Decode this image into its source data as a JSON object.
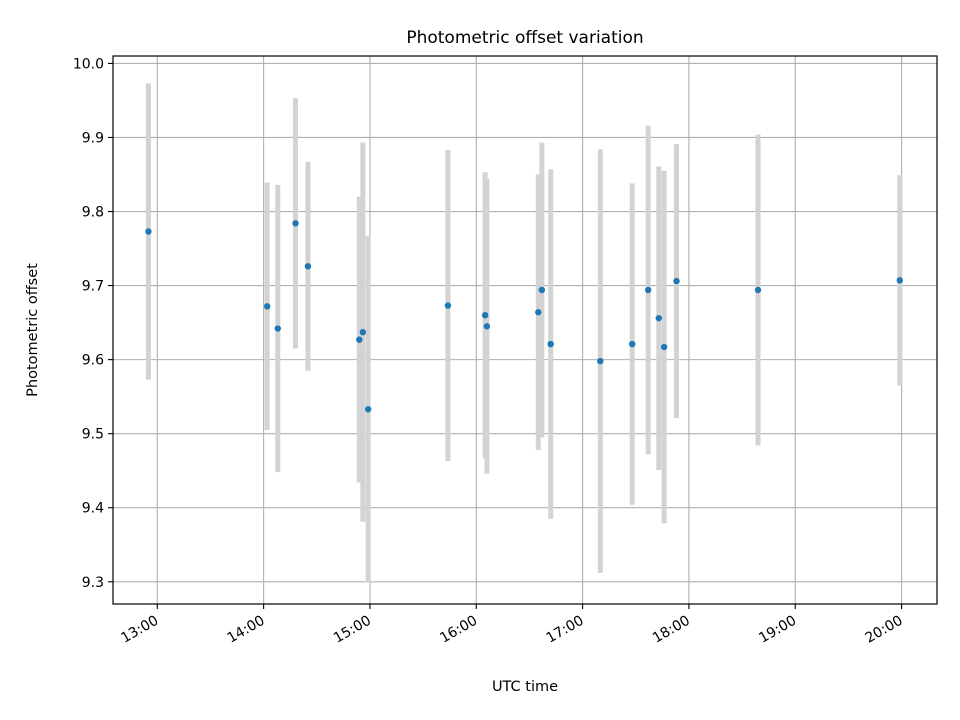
{
  "chart_data": {
    "type": "scatter",
    "title": "Photometric offset variation",
    "xlabel": "UTC time",
    "ylabel": "Photometric offset",
    "xlim": [
      "12:35",
      "20:20"
    ],
    "ylim": [
      9.27,
      10.01
    ],
    "x_ticks": [
      "13:00",
      "14:00",
      "15:00",
      "16:00",
      "17:00",
      "18:00",
      "19:00",
      "20:00"
    ],
    "y_ticks": [
      "9.3",
      "9.4",
      "9.5",
      "9.6",
      "9.7",
      "9.8",
      "9.9",
      "10.0"
    ],
    "grid": true,
    "marker_color": "#1f77b4",
    "errorbar_color": "#d3d3d3",
    "points": [
      {
        "time": "12:55",
        "y": 9.773,
        "low": 9.573,
        "high": 9.973
      },
      {
        "time": "14:02",
        "y": 9.672,
        "low": 9.505,
        "high": 9.839
      },
      {
        "time": "14:08",
        "y": 9.642,
        "low": 9.448,
        "high": 9.836
      },
      {
        "time": "14:18",
        "y": 9.784,
        "low": 9.615,
        "high": 9.953
      },
      {
        "time": "14:25",
        "y": 9.726,
        "low": 9.585,
        "high": 9.867
      },
      {
        "time": "14:54",
        "y": 9.627,
        "low": 9.434,
        "high": 9.82
      },
      {
        "time": "14:56",
        "y": 9.637,
        "low": 9.381,
        "high": 9.893
      },
      {
        "time": "14:59",
        "y": 9.533,
        "low": 9.299,
        "high": 9.767
      },
      {
        "time": "15:44",
        "y": 9.673,
        "low": 9.463,
        "high": 9.883
      },
      {
        "time": "16:05",
        "y": 9.66,
        "low": 9.467,
        "high": 9.853
      },
      {
        "time": "16:06",
        "y": 9.645,
        "low": 9.446,
        "high": 9.844
      },
      {
        "time": "16:35",
        "y": 9.664,
        "low": 9.478,
        "high": 9.85
      },
      {
        "time": "16:37",
        "y": 9.694,
        "low": 9.495,
        "high": 9.893
      },
      {
        "time": "16:42",
        "y": 9.621,
        "low": 9.385,
        "high": 9.857
      },
      {
        "time": "17:10",
        "y": 9.598,
        "low": 9.312,
        "high": 9.884
      },
      {
        "time": "17:28",
        "y": 9.621,
        "low": 9.404,
        "high": 9.838
      },
      {
        "time": "17:37",
        "y": 9.694,
        "low": 9.472,
        "high": 9.916
      },
      {
        "time": "17:43",
        "y": 9.656,
        "low": 9.451,
        "high": 9.861
      },
      {
        "time": "17:46",
        "y": 9.617,
        "low": 9.379,
        "high": 9.855
      },
      {
        "time": "17:53",
        "y": 9.706,
        "low": 9.521,
        "high": 9.891
      },
      {
        "time": "18:39",
        "y": 9.694,
        "low": 9.484,
        "high": 9.904
      },
      {
        "time": "19:59",
        "y": 9.707,
        "low": 9.565,
        "high": 9.849
      }
    ]
  }
}
